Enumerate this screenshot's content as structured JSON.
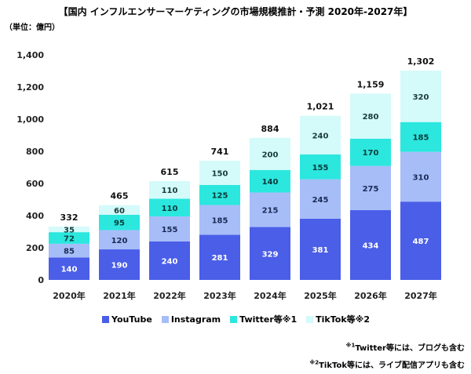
{
  "title": "【国内 インフルエンサーマーケティングの市場規模推計・予測 2020年-2027年】",
  "unit_label": "（単位：億円）",
  "colors": {
    "YouTube": "#4a5ee8",
    "Instagram": "#a7bdf8",
    "Twitter": "#2be7de",
    "TikTok": "#d4fafa"
  },
  "chart_data": {
    "type": "bar",
    "stacked": true,
    "categories": [
      "2020年",
      "2021年",
      "2022年",
      "2023年",
      "2024年",
      "2025年",
      "2026年",
      "2027年"
    ],
    "series": [
      {
        "name": "YouTube",
        "values": [
          140,
          190,
          240,
          281,
          329,
          381,
          434,
          487
        ]
      },
      {
        "name": "Instagram",
        "values": [
          85,
          120,
          155,
          185,
          215,
          245,
          275,
          310
        ]
      },
      {
        "name": "Twitter等※1",
        "values": [
          72,
          95,
          110,
          125,
          140,
          155,
          170,
          185
        ]
      },
      {
        "name": "TikTok等※2",
        "values": [
          35,
          60,
          110,
          150,
          200,
          240,
          280,
          320
        ]
      }
    ],
    "totals": [
      "332",
      "465",
      "615",
      "741",
      "884",
      "1,021",
      "1,159",
      "1,302"
    ],
    "yticks": [
      "0",
      "200",
      "400",
      "600",
      "800",
      "1,000",
      "1,200",
      "1,400"
    ],
    "ylim": [
      0,
      1400
    ],
    "grid": false,
    "legend": "bottom"
  },
  "notes": {
    "note1_mark": "※1",
    "note1_text": "Twitter等には、ブログも含む",
    "note2_mark": "※2",
    "note2_text": "TikTok等には、ライブ配信アプリも含む"
  }
}
